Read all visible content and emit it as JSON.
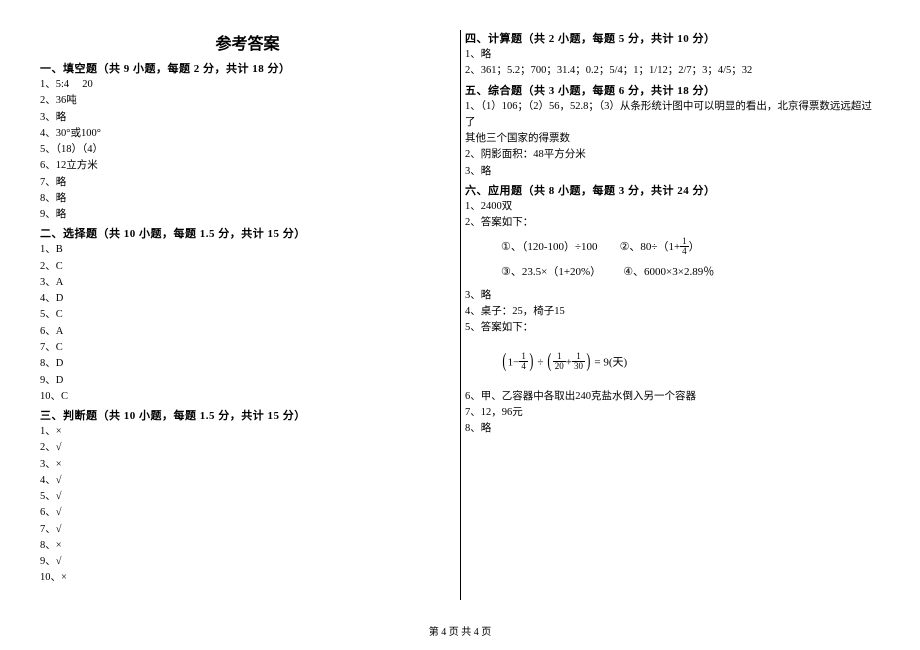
{
  "title": "参考答案",
  "footer": "第 4 页  共 4 页",
  "sections": {
    "s1": {
      "head": "一、填空题（共 9 小题，每题 2 分，共计 18 分）",
      "items": [
        "1、5:4     20",
        "2、36吨",
        "3、略",
        "4、30°或100°",
        "5、（18）（4）",
        "6、12立方米",
        "7、略",
        "8、略",
        "9、略"
      ]
    },
    "s2": {
      "head": "二、选择题（共 10 小题，每题 1.5 分，共计 15 分）",
      "items": [
        "1、B",
        "2、C",
        "3、A",
        "4、D",
        "5、C",
        "6、A",
        "7、C",
        "8、D",
        "9、D",
        "10、C"
      ]
    },
    "s3": {
      "head": "三、判断题（共 10 小题，每题 1.5 分，共计 15 分）",
      "items": [
        "1、×",
        "2、√",
        "3、×",
        "4、√",
        "5、√",
        "6、√",
        "7、√",
        "8、×",
        "9、√",
        "10、×"
      ]
    },
    "s4": {
      "head": "四、计算题（共 2 小题，每题 5 分，共计 10 分）",
      "items": [
        "1、略",
        "2、361；5.2；700；31.4；0.2；5/4；1；1/12；2/7；3；4/5；32"
      ]
    },
    "s5": {
      "head": "五、综合题（共 3 小题，每题 6 分，共计 18 分）",
      "items": [
        "1、（1）106；（2）56，52.8；（3）从条形统计图中可以明显的看出，北京得票数远远超过了",
        "其他三个国家的得票数",
        "2、阴影面积：48平方分米",
        "3、略"
      ]
    },
    "s6": {
      "head": "六、应用题（共 8 小题，每题 3 分，共计 24 分）",
      "pre": [
        "1、2400双",
        "2、答案如下："
      ],
      "f1": {
        "a": "①、（120-100）÷100",
        "b": "②、80÷（1+",
        "frac": {
          "n": "1",
          "d": "4"
        },
        "c": "）"
      },
      "f2": {
        "a": "③、23.5×（1+20%）",
        "b": "④、6000×3×2.89％"
      },
      "mid": [
        "3、略",
        "4、桌子：25，椅子15",
        "5、答案如下："
      ],
      "eq": {
        "lp": "(",
        "one": "1",
        "minus": "−",
        "f_a": {
          "n": "1",
          "d": "4"
        },
        "rp": ")",
        "div": "÷",
        "lp2": "(",
        "f_b": {
          "n": "1",
          "d": "20"
        },
        "plus": "+",
        "f_c": {
          "n": "1",
          "d": "30"
        },
        "rp2": ")",
        "eqres": "= 9(天)"
      },
      "post": [
        "6、甲、乙容器中各取出240克盐水倒入另一个容器",
        "7、12，96元",
        "8、略"
      ]
    }
  }
}
